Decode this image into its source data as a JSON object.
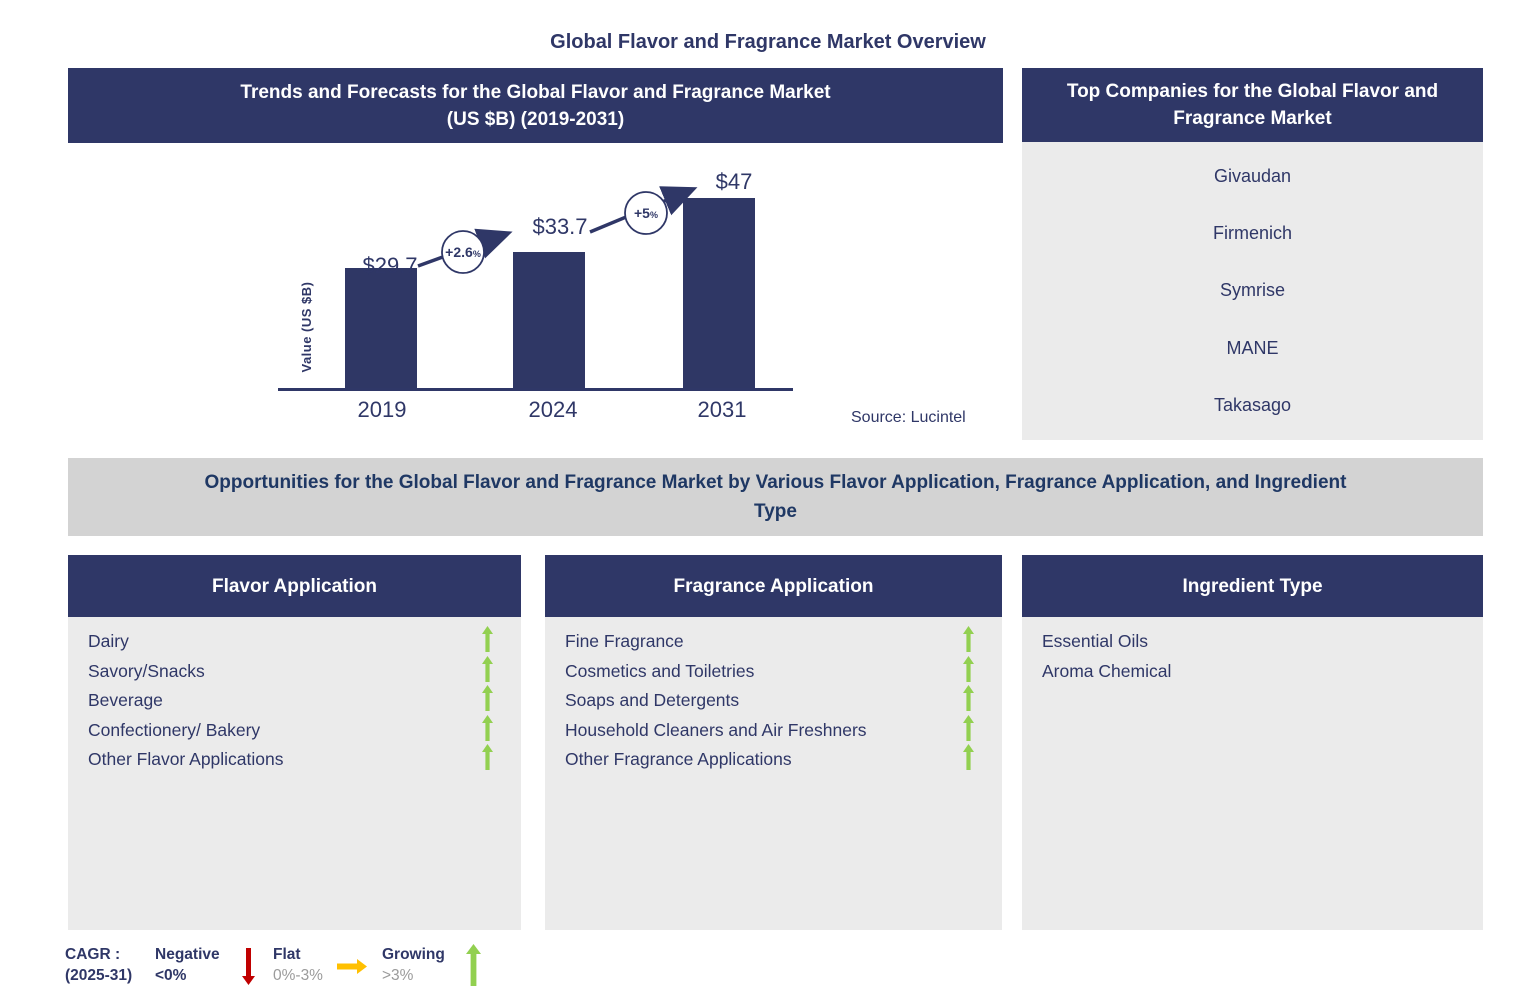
{
  "page_title": "Global Flavor and Fragrance Market Overview",
  "trends_panel": {
    "header_line1": "Trends and Forecasts for the Global Flavor and Fragrance Market",
    "header_line2": "(US $B) (2019-2031)",
    "source": "Source: Lucintel"
  },
  "chart_data": {
    "type": "bar",
    "title": "Trends and Forecasts for the Global Flavor and Fragrance Market (US $B) (2019-2031)",
    "ylabel": "Value (US $B)",
    "xlabel": "",
    "categories": [
      "2019",
      "2024",
      "2031"
    ],
    "values": [
      29.7,
      33.7,
      47
    ],
    "bar_labels": [
      "$29.7",
      "$33.7",
      "$47"
    ],
    "growth_annotations": [
      {
        "value": "+2.6",
        "unit": "%"
      },
      {
        "value": "+5",
        "unit": "%"
      }
    ],
    "ylim": [
      0,
      50
    ],
    "grid": false,
    "legend": "none",
    "bar_color": "#2F3765",
    "source": "Source: Lucintel"
  },
  "companies_panel": {
    "header": "Top Companies for the Global Flavor and Fragrance Market",
    "companies": [
      "Givaudan",
      "Firmenich",
      "Symrise",
      "MANE",
      "Takasago"
    ]
  },
  "opportunities_band": {
    "text": "Opportunities for the Global Flavor and Fragrance Market by Various Flavor Application, Fragrance Application, and Ingredient Type"
  },
  "flavor_panel": {
    "header": "Flavor Application",
    "items": [
      {
        "label": "Dairy",
        "trend": "growing"
      },
      {
        "label": "Savory/Snacks",
        "trend": "growing"
      },
      {
        "label": "Beverage",
        "trend": "growing"
      },
      {
        "label": "Confectionery/ Bakery",
        "trend": "growing"
      },
      {
        "label": "Other Flavor Applications",
        "trend": "growing"
      }
    ]
  },
  "fragrance_panel": {
    "header": "Fragrance Application",
    "items": [
      {
        "label": "Fine Fragrance",
        "trend": "growing"
      },
      {
        "label": "Cosmetics and Toiletries",
        "trend": "growing"
      },
      {
        "label": "Soaps and Detergents",
        "trend": "growing"
      },
      {
        "label": "Household Cleaners and Air Freshners",
        "trend": "growing"
      },
      {
        "label": "Other Fragrance Applications",
        "trend": "growing"
      }
    ]
  },
  "ingredient_panel": {
    "header": "Ingredient Type",
    "items": [
      {
        "label": "Essential Oils"
      },
      {
        "label": "Aroma Chemical"
      }
    ]
  },
  "legend": {
    "cagr_label_line1": "CAGR :",
    "cagr_label_line2": "(2025-31)",
    "negative": {
      "label": "Negative",
      "range": "<0%"
    },
    "flat": {
      "label": "Flat",
      "range": "0%-3%"
    },
    "growing": {
      "label": "Growing",
      "range": ">3%"
    }
  },
  "colors": {
    "navy": "#2F3767",
    "bar_navy": "#2F3765",
    "panel_gray": "#EBEBEB",
    "band_gray": "#D3D3D3",
    "green_up": "#92D050",
    "red_down": "#C00000",
    "orange_flat": "#FFC000",
    "legend_gray_text": "#9B9B9B"
  }
}
